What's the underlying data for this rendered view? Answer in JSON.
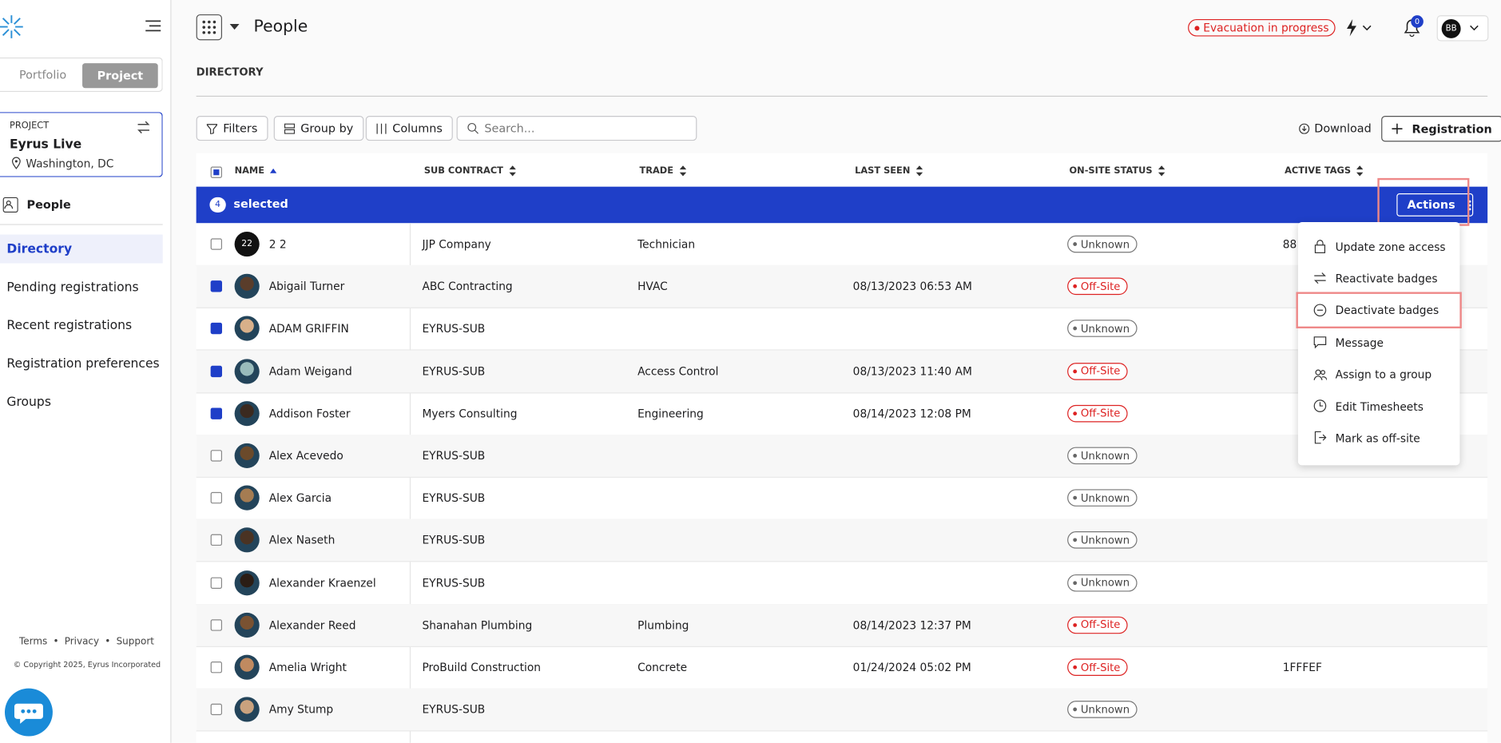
{
  "header": {
    "title": "People",
    "alert": "Evacuation in progress",
    "notification_count": "0",
    "avatar": "BB"
  },
  "sidebar": {
    "toggle": [
      "Portfolio",
      "Project"
    ],
    "project_label": "PROJECT",
    "project_name": "Eyrus Live",
    "project_location": "Washington, DC",
    "section": "People",
    "nav": [
      "Directory",
      "Pending registrations",
      "Recent registrations",
      "Registration preferences",
      "Groups"
    ],
    "footer_links": [
      "Terms",
      "Privacy",
      "Support"
    ],
    "copyright": "© Copyright 2025, Eyrus Incorporated"
  },
  "directory": {
    "heading": "DIRECTORY",
    "toolbar": [
      "Filters",
      "Group by",
      "Columns"
    ],
    "search_placeholder": "Search...",
    "download": "Download",
    "register": "Registration"
  },
  "table": {
    "columns": [
      "NAME",
      "SUB CONTRACT",
      "TRADE",
      "LAST SEEN",
      "ON-SITE STATUS",
      "ACTIVE TAGS"
    ],
    "selection": {
      "count": "4",
      "label": "selected",
      "actions": "Actions"
    },
    "rows": [
      {
        "avatar_text": "22",
        "name": "2 2",
        "sub": "JJP Company",
        "trade": "Technician",
        "last_seen": null,
        "status": "Unknown",
        "tags": "88",
        "checked": false
      },
      {
        "name": "Abigail Turner",
        "sub": "ABC Contracting",
        "trade": "HVAC",
        "last_seen": "08/13/2023 06:53 AM",
        "status": "Off-Site",
        "tags": null,
        "checked": true
      },
      {
        "name": "ADAM GRIFFIN",
        "sub": "EYRUS-SUB",
        "trade": null,
        "last_seen": null,
        "status": "Unknown",
        "tags": null,
        "checked": true
      },
      {
        "name": "Adam Weigand",
        "sub": "EYRUS-SUB",
        "trade": "Access Control",
        "last_seen": "08/13/2023 11:40 AM",
        "status": "Off-Site",
        "tags": null,
        "checked": true
      },
      {
        "name": "Addison Foster",
        "sub": "Myers Consulting",
        "trade": "Engineering",
        "last_seen": "08/14/2023 12:08 PM",
        "status": "Off-Site",
        "tags": null,
        "checked": true
      },
      {
        "name": "Alex Acevedo",
        "sub": "EYRUS-SUB",
        "trade": null,
        "last_seen": null,
        "status": "Unknown",
        "tags": null,
        "checked": false
      },
      {
        "name": "Alex Garcia",
        "sub": "EYRUS-SUB",
        "trade": null,
        "last_seen": null,
        "status": "Unknown",
        "tags": null,
        "checked": false
      },
      {
        "name": "Alex Naseth",
        "sub": "EYRUS-SUB",
        "trade": null,
        "last_seen": null,
        "status": "Unknown",
        "tags": null,
        "checked": false
      },
      {
        "name": "Alexander Kraenzel",
        "sub": "EYRUS-SUB",
        "trade": null,
        "last_seen": null,
        "status": "Unknown",
        "tags": null,
        "checked": false
      },
      {
        "name": "Alexander Reed",
        "sub": "Shanahan Plumbing",
        "trade": "Plumbing",
        "last_seen": "08/14/2023 12:37 PM",
        "status": "Off-Site",
        "tags": null,
        "checked": false
      },
      {
        "name": "Amelia Wright",
        "sub": "ProBuild Construction",
        "trade": "Concrete",
        "last_seen": "01/24/2024 05:02 PM",
        "status": "Off-Site",
        "tags": "1FFFEF",
        "checked": false
      },
      {
        "name": "Amy Stump",
        "sub": "EYRUS-SUB",
        "trade": null,
        "last_seen": null,
        "status": "Unknown",
        "tags": null,
        "checked": false
      }
    ]
  },
  "actions_menu": {
    "items": [
      "Update zone access",
      "Reactivate badges",
      "Deactivate badges",
      "Message",
      "Assign to a group",
      "Edit Timesheets",
      "Mark as off-site"
    ],
    "highlighted": 2
  }
}
